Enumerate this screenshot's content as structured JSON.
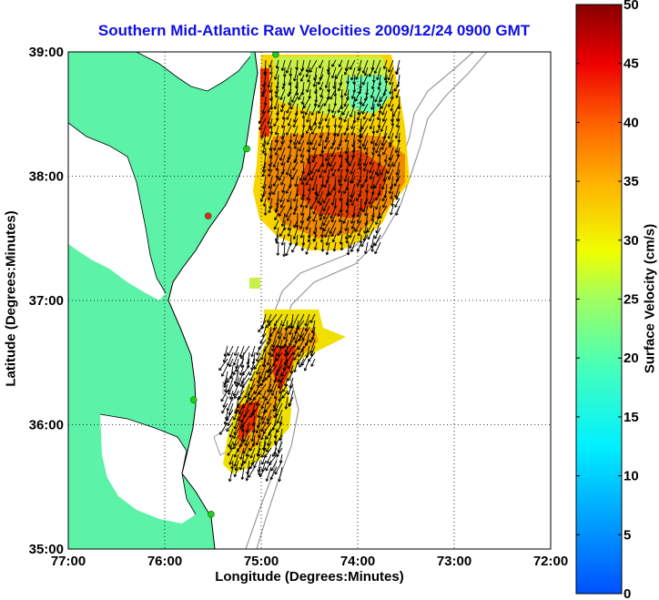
{
  "title": "Southern Mid-Atlantic Raw Velocities 2009/12/24 0900 GMT",
  "map": {
    "xlabel": "Longitude (Degrees:Minutes)",
    "ylabel": "Latitude (Degrees:Minutes)",
    "lon_ticks": [
      "77:00",
      "76:00",
      "75:00",
      "74:00",
      "73:00",
      "72:00"
    ],
    "lat_ticks": [
      "39:00",
      "38:00",
      "37:00",
      "36:00",
      "35:00"
    ],
    "lon_range": [
      -77,
      -72
    ],
    "lat_range": [
      35,
      39
    ],
    "grid": "dotted",
    "land_color": "#5cf2a8",
    "contour_color": "#999999"
  },
  "colorbar": {
    "label": "Surface Velocity (cm/s)",
    "ticks": [
      "0",
      "5",
      "10",
      "15",
      "20",
      "25",
      "30",
      "35",
      "40",
      "45",
      "50"
    ],
    "range": [
      0,
      50
    ],
    "colormap": "jet"
  },
  "stations": [
    {
      "lon": -74.85,
      "lat": 38.98,
      "color": "#22cc22"
    },
    {
      "lon": -75.15,
      "lat": 38.22,
      "color": "#22cc22"
    },
    {
      "lon": -75.55,
      "lat": 37.68,
      "color": "#ee2222"
    },
    {
      "lon": -75.7,
      "lat": 36.2,
      "color": "#22cc22"
    },
    {
      "lon": -75.52,
      "lat": 35.28,
      "color": "#22cc22"
    }
  ]
}
